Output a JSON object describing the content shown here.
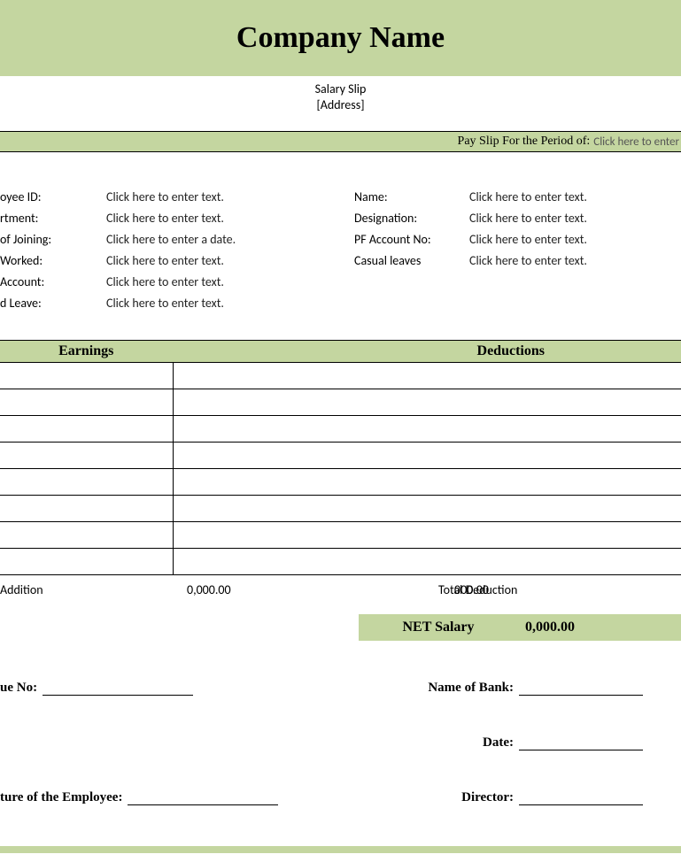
{
  "header": {
    "company_name": "Company Name",
    "subtitle_1": "Salary Slip",
    "subtitle_2": "[Address]"
  },
  "period": {
    "label": "Pay Slip For the Period of:",
    "value": "Click here to enter"
  },
  "info_left": [
    {
      "label": "oyee ID:",
      "value": "Click here to enter text."
    },
    {
      "label": "rtment:",
      "value": "Click here to enter text."
    },
    {
      "label": "of Joining:",
      "value": "Click here to enter a date."
    },
    {
      "label": "Worked:",
      "value": "Click here to enter text."
    },
    {
      "label": "Account:",
      "value": "Click here to enter text."
    },
    {
      "label": "d Leave:",
      "value": "Click here to enter text."
    }
  ],
  "info_right": [
    {
      "label": "Name:",
      "value": "Click here to enter text."
    },
    {
      "label": "Designation:",
      "value": "Click here to enter text."
    },
    {
      "label": "PF Account No:",
      "value": "Click here to enter text."
    },
    {
      "label": "Casual leaves",
      "value": "Click here to enter text."
    }
  ],
  "table": {
    "earnings_header": "Earnings",
    "deductions_header": "Deductions",
    "row_count": 8,
    "addition_label": "Addition",
    "addition_value": "0,000.00",
    "deduction_label": "Total Deduction",
    "deduction_value": "000.00",
    "net_label": "NET Salary",
    "net_value": "0,000.00"
  },
  "signatures": {
    "cheque_label": "ue No:",
    "bank_label": "Name of Bank:",
    "date_label": "Date:",
    "employee_sig_label": "ture of the Employee:",
    "director_label": "Director:"
  },
  "colors": {
    "band": "#c4d6a0",
    "text": "#000000",
    "background": "#ffffff"
  }
}
